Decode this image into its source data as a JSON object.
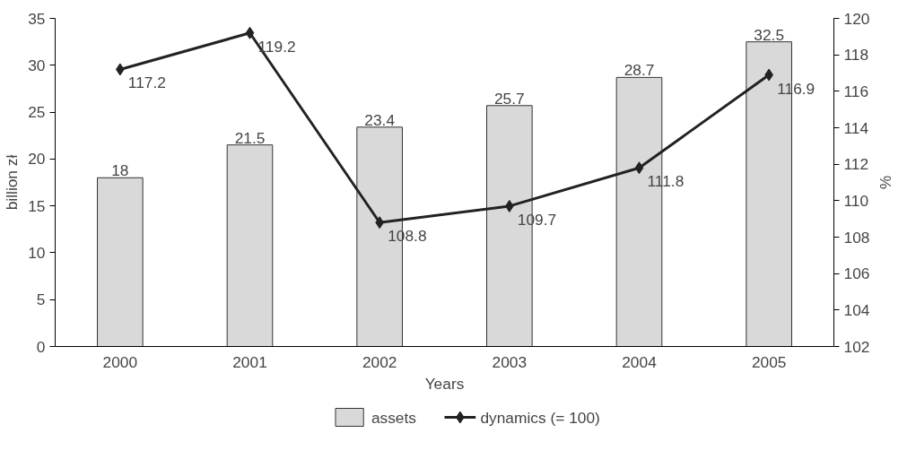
{
  "chart_data": {
    "type": "bar",
    "categories": [
      "2000",
      "2001",
      "2002",
      "2003",
      "2004",
      "2005"
    ],
    "xlabel": "Years",
    "ylabel": "billion zł",
    "y2label": "%",
    "series": [
      {
        "name": "assets",
        "color": "#d9d9d9",
        "values": [
          18,
          21.5,
          23.4,
          25.7,
          28.7,
          32.5
        ]
      },
      {
        "name": "dynamics (= 100)",
        "type": "line",
        "axis": "y2",
        "color": "#222222",
        "marker": "diamond",
        "values": [
          117.2,
          119.2,
          108.8,
          109.7,
          111.8,
          116.9
        ]
      }
    ],
    "ylim": [
      0,
      35
    ],
    "yticks": [
      0,
      5,
      10,
      15,
      20,
      25,
      30,
      35
    ],
    "y2lim": [
      102,
      120
    ],
    "y2ticks": [
      102,
      104,
      106,
      108,
      110,
      112,
      114,
      116,
      118,
      120
    ],
    "data_labels": true,
    "grid": false,
    "legend": "bottom"
  }
}
